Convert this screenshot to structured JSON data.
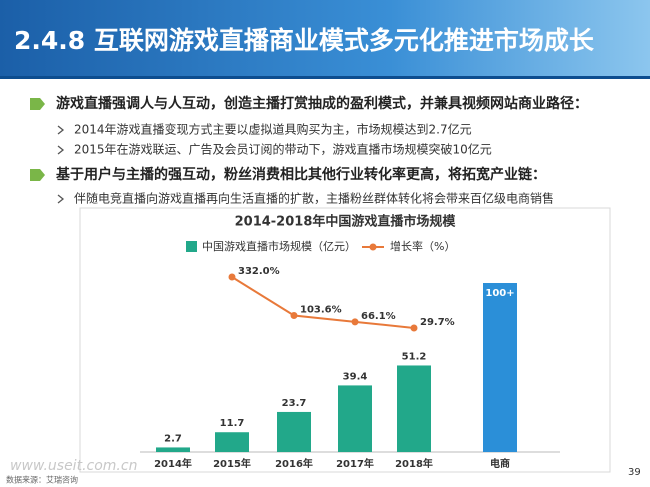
{
  "header": {
    "title": "2.4.8 互联网游戏直播商业模式多元化推进市场成长"
  },
  "bullets": [
    {
      "level": 1,
      "text": "游戏直播强调人与人互动，创造主播打赏抽成的盈利模式，并兼具视频网站商业路径："
    },
    {
      "level": 2,
      "text": "2014年游戏直播变现方式主要以虚拟道具购买为主，市场规模达到2.7亿元"
    },
    {
      "level": 2,
      "text": "2015年在游戏联运、广告及会员订阅的带动下，游戏直播市场规模突破10亿元"
    },
    {
      "level": 1,
      "text": "基于用户与主播的强互动，粉丝消费相比其他行业转化率更高，将拓宽产业链："
    },
    {
      "level": 2,
      "text": "伴随电竞直播向游戏直播再向生活直播的扩散，主播粉丝群体转化将会带来百亿级电商销售"
    }
  ],
  "chart_data": {
    "type": "bar",
    "title": "2014-2018年中国游戏直播市场规模",
    "categories": [
      "2014年",
      "2015年",
      "2016年",
      "2017年",
      "2018年",
      "电商"
    ],
    "series": [
      {
        "name": "中国游戏直播市场规模（亿元）",
        "type": "bar",
        "color": "#22a88a",
        "colors": [
          "#22a88a",
          "#22a88a",
          "#22a88a",
          "#22a88a",
          "#22a88a",
          "#2b8fd8"
        ],
        "values": [
          2.7,
          11.7,
          23.7,
          39.4,
          51.2,
          100
        ],
        "value_labels": [
          "2.7",
          "11.7",
          "23.7",
          "39.4",
          "51.2",
          "100+"
        ]
      },
      {
        "name": "增长率（%）",
        "type": "line",
        "axis": "y2",
        "color": "#e8793a",
        "values": [
          null,
          332.0,
          103.6,
          66.1,
          29.7,
          null
        ],
        "value_labels": [
          null,
          "332.0%",
          "103.6%",
          "66.1%",
          "29.7%",
          null
        ]
      }
    ]
  },
  "footer": {
    "source": "数据来源：艾瑞咨询",
    "page": "39",
    "watermark": "www.useit.com.cn"
  }
}
